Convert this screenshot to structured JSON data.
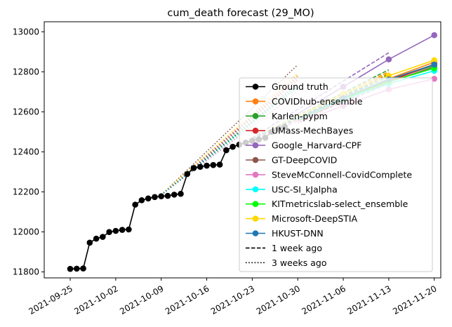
{
  "chart_data": {
    "type": "line",
    "title": "cum_death forecast (29_MO)",
    "xlabel": "",
    "ylabel": "",
    "x_axis": {
      "type": "date",
      "range": [
        "2021-09-21",
        "2021-11-21"
      ],
      "ticks": [
        "2021-09-25",
        "2021-10-02",
        "2021-10-09",
        "2021-10-16",
        "2021-10-23",
        "2021-10-30",
        "2021-11-06",
        "2021-11-13",
        "2021-11-20"
      ]
    },
    "y_axis": {
      "range": [
        11770,
        13050
      ],
      "ticks": [
        11800,
        12000,
        12200,
        12400,
        12600,
        12800,
        13000
      ]
    },
    "grid": false,
    "legend_position": "lower-right",
    "ground_truth": {
      "name": "Ground truth",
      "color": "#000000",
      "points": [
        [
          "2021-09-25",
          11815
        ],
        [
          "2021-09-26",
          11816
        ],
        [
          "2021-09-27",
          11817
        ],
        [
          "2021-09-28",
          11946
        ],
        [
          "2021-09-29",
          11966
        ],
        [
          "2021-09-30",
          11975
        ],
        [
          "2021-10-01",
          11999
        ],
        [
          "2021-10-02",
          12005
        ],
        [
          "2021-10-03",
          12010
        ],
        [
          "2021-10-04",
          12012
        ],
        [
          "2021-10-05",
          12136
        ],
        [
          "2021-10-06",
          12158
        ],
        [
          "2021-10-07",
          12167
        ],
        [
          "2021-10-08",
          12174
        ],
        [
          "2021-10-09",
          12178
        ],
        [
          "2021-10-10",
          12180
        ],
        [
          "2021-10-11",
          12186
        ],
        [
          "2021-10-12",
          12190
        ],
        [
          "2021-10-13",
          12289
        ],
        [
          "2021-10-14",
          12319
        ],
        [
          "2021-10-15",
          12325
        ],
        [
          "2021-10-16",
          12331
        ],
        [
          "2021-10-17",
          12334
        ],
        [
          "2021-10-18",
          12336
        ],
        [
          "2021-10-19",
          12408
        ],
        [
          "2021-10-20",
          12425
        ],
        [
          "2021-10-21",
          12436
        ],
        [
          "2021-10-22",
          12446
        ],
        [
          "2021-10-23",
          12455
        ],
        [
          "2021-10-24",
          12462
        ],
        [
          "2021-10-25",
          12470
        ],
        [
          "2021-10-26",
          12500
        ],
        [
          "2021-10-27",
          12515
        ],
        [
          "2021-10-28",
          12525
        ]
      ]
    },
    "series": [
      {
        "name": "COVIDhub-ensemble",
        "color": "#ff7f0e",
        "now": [
          [
            "2021-10-30",
            12565
          ],
          [
            "2021-11-06",
            12670
          ],
          [
            "2021-11-13",
            12765
          ],
          [
            "2021-11-20",
            12848
          ]
        ],
        "week1": [
          [
            "2021-10-23",
            12465
          ],
          [
            "2021-11-13",
            12800
          ]
        ],
        "week3": [
          [
            "2021-10-09",
            12185
          ],
          [
            "2021-10-30",
            12780
          ]
        ]
      },
      {
        "name": "Karlen-pypm",
        "color": "#2ca02c",
        "now": [
          [
            "2021-10-30",
            12562
          ],
          [
            "2021-11-06",
            12665
          ],
          [
            "2021-11-13",
            12758
          ],
          [
            "2021-11-20",
            12832
          ]
        ],
        "week1": [
          [
            "2021-10-23",
            12465
          ],
          [
            "2021-11-13",
            12810
          ]
        ],
        "week3": [
          [
            "2021-10-09",
            12185
          ],
          [
            "2021-10-30",
            12740
          ]
        ]
      },
      {
        "name": "UMass-MechBayes",
        "color": "#d62728",
        "now": [
          [
            "2021-10-30",
            12560
          ],
          [
            "2021-11-06",
            12662
          ],
          [
            "2021-11-13",
            12752
          ],
          [
            "2021-11-20",
            12838
          ]
        ],
        "week1": [
          [
            "2021-10-23",
            12465
          ],
          [
            "2021-11-13",
            12790
          ]
        ],
        "week3": [
          [
            "2021-10-09",
            12185
          ],
          [
            "2021-10-30",
            12760
          ]
        ]
      },
      {
        "name": "Google_Harvard-CPF",
        "color": "#9467bd",
        "now": [
          [
            "2021-10-30",
            12590
          ],
          [
            "2021-11-06",
            12725
          ],
          [
            "2021-11-13",
            12862
          ],
          [
            "2021-11-20",
            12983
          ]
        ],
        "week1": [
          [
            "2021-10-23",
            12470
          ],
          [
            "2021-11-13",
            12895
          ]
        ],
        "week3": [
          [
            "2021-10-09",
            12185
          ],
          [
            "2021-10-30",
            12770
          ]
        ]
      },
      {
        "name": "GT-DeepCOVID",
        "color": "#8c564b",
        "now": [
          [
            "2021-10-30",
            12555
          ],
          [
            "2021-11-06",
            12655
          ],
          [
            "2021-11-13",
            12748
          ],
          [
            "2021-11-20",
            12825
          ]
        ],
        "week1": [
          [
            "2021-10-23",
            12465
          ],
          [
            "2021-11-13",
            12760
          ]
        ],
        "week3": [
          [
            "2021-10-09",
            12185
          ],
          [
            "2021-10-30",
            12835
          ]
        ]
      },
      {
        "name": "SteveMcConnell-CovidComplete",
        "color": "#e377c2",
        "now": [
          [
            "2021-10-30",
            12545
          ],
          [
            "2021-11-06",
            12630
          ],
          [
            "2021-11-13",
            12712
          ],
          [
            "2021-11-20",
            12765
          ]
        ],
        "week1": [
          [
            "2021-10-23",
            12460
          ],
          [
            "2021-11-13",
            12740
          ]
        ],
        "week3": [
          [
            "2021-10-09",
            12185
          ],
          [
            "2021-10-30",
            12700
          ]
        ]
      },
      {
        "name": "USC-SI_kJalpha",
        "color": "#00ffff",
        "now": [
          [
            "2021-10-30",
            12560
          ],
          [
            "2021-11-06",
            12660
          ],
          [
            "2021-11-13",
            12740
          ],
          [
            "2021-11-20",
            12805
          ]
        ],
        "week1": [
          [
            "2021-10-23",
            12465
          ],
          [
            "2021-11-13",
            12775
          ]
        ],
        "week3": [
          [
            "2021-10-09",
            12185
          ],
          [
            "2021-10-30",
            12720
          ]
        ]
      },
      {
        "name": "KITmetricslab-select_ensemble",
        "color": "#00ff00",
        "now": [
          [
            "2021-10-30",
            12562
          ],
          [
            "2021-11-06",
            12664
          ],
          [
            "2021-11-13",
            12750
          ],
          [
            "2021-11-20",
            12818
          ]
        ],
        "week1": [
          [
            "2021-10-23",
            12465
          ],
          [
            "2021-11-13",
            12785
          ]
        ],
        "week3": [
          [
            "2021-10-09",
            12185
          ],
          [
            "2021-10-30",
            12725
          ]
        ]
      },
      {
        "name": "Microsoft-DeepSTIA",
        "color": "#ffd700",
        "now": [
          [
            "2021-10-30",
            12575
          ],
          [
            "2021-11-06",
            12690
          ],
          [
            "2021-11-13",
            12780
          ],
          [
            "2021-11-20",
            12858
          ]
        ],
        "week1": [
          [
            "2021-10-23",
            12468
          ],
          [
            "2021-11-13",
            12795
          ]
        ],
        "week3": [
          [
            "2021-10-09",
            12185
          ],
          [
            "2021-10-30",
            12790
          ]
        ]
      },
      {
        "name": "HKUST-DNN",
        "color": "#1f77b4",
        "now": [
          [
            "2021-10-30",
            12565
          ],
          [
            "2021-11-06",
            12668
          ],
          [
            "2021-11-13",
            12762
          ],
          [
            "2021-11-20",
            12836
          ]
        ],
        "week1": [
          [
            "2021-10-23",
            12465
          ],
          [
            "2021-11-13",
            12780
          ]
        ],
        "week3": [
          [
            "2021-10-09",
            12185
          ],
          [
            "2021-10-30",
            12730
          ]
        ]
      }
    ],
    "legend_extra": [
      {
        "name": "1 week ago",
        "style": "dashed"
      },
      {
        "name": "3 weeks ago",
        "style": "dotted"
      }
    ]
  }
}
